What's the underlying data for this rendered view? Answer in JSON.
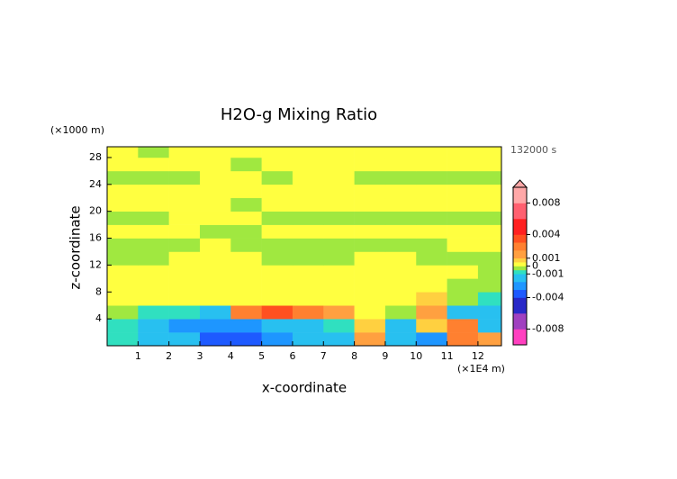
{
  "chart_data": {
    "type": "contour",
    "title": "H2O-g Mixing Ratio",
    "xlabel": "x-coordinate",
    "ylabel": "z-coordinate",
    "x_unit": "(×1E4 m)",
    "y_unit": "(×1000 m)",
    "time_label": "132000 s",
    "xlim": [
      0,
      12.76
    ],
    "ylim": [
      0,
      29.6
    ],
    "xticks": [
      1,
      2,
      3,
      4,
      5,
      6,
      7,
      8,
      9,
      10,
      11,
      12
    ],
    "yticks": [
      4,
      8,
      12,
      16,
      20,
      24,
      28
    ],
    "x": [
      0.5,
      1.5,
      2.5,
      3.5,
      4.5,
      5.5,
      6.5,
      7.5,
      8.5,
      9.5,
      10.5,
      11.5,
      12.5
    ],
    "z": [
      1,
      3,
      5,
      7,
      9,
      11,
      13,
      15,
      17,
      19,
      21,
      23,
      25,
      27,
      29
    ],
    "values": [
      [
        -0.0008,
        -0.0015,
        -0.002,
        -0.0035,
        -0.0035,
        -0.0025,
        -0.0015,
        -0.0015,
        0.0012,
        -0.0015,
        -0.003,
        0.0025,
        0.0015
      ],
      [
        -0.0008,
        -0.0015,
        -0.0025,
        -0.003,
        -0.0025,
        -0.0015,
        -0.0012,
        -0.0008,
        0.0006,
        -0.0012,
        0.0008,
        0.0025,
        -0.0015
      ],
      [
        -0.0003,
        -0.0006,
        -0.0008,
        -0.0012,
        0.0025,
        0.003,
        0.0025,
        0.0012,
        0.0002,
        -0.0003,
        0.0015,
        -0.0015,
        -0.0012
      ],
      [
        0.0002,
        0.0002,
        0.0002,
        0.0002,
        0.0003,
        0.0002,
        0.0002,
        0.0002,
        0.0002,
        0.0002,
        0.0006,
        -0.0002,
        -0.0006
      ],
      [
        0.0002,
        0.0002,
        0.0002,
        0.0002,
        0.0002,
        0.0002,
        0.0002,
        0.0002,
        0.0002,
        0.0002,
        0.0002,
        -0.0002,
        -0.0002
      ],
      [
        0.0002,
        0.0002,
        0.0002,
        0.0002,
        0.0002,
        0.0002,
        0.0002,
        0.0002,
        0.0002,
        0.0002,
        0.0002,
        0.0002,
        -0.0002
      ],
      [
        -0.0002,
        -0.0002,
        0.0002,
        0.0002,
        0.0002,
        -0.0002,
        -0.0002,
        -0.0002,
        0.0002,
        0.0002,
        -0.0002,
        -0.0002,
        -0.0002
      ],
      [
        -0.0002,
        -0.0002,
        -0.0002,
        0.0002,
        -0.0002,
        -0.0002,
        -0.0002,
        -0.0002,
        -0.0002,
        -0.0002,
        -0.0002,
        0.0002,
        0.0002
      ],
      [
        0.0002,
        0.0002,
        0.0002,
        -0.0002,
        -0.0002,
        0.0002,
        0.0002,
        0.0002,
        0.0002,
        0.0002,
        0.0002,
        0.0002,
        0.0002
      ],
      [
        -0.0002,
        -0.0002,
        0.0002,
        0.0002,
        0.0002,
        -0.0002,
        -0.0002,
        -0.0002,
        -0.0002,
        -0.0002,
        -0.0002,
        -0.0002,
        -0.0002
      ],
      [
        0.0002,
        0.0002,
        0.0002,
        0.0002,
        -0.0002,
        0.0002,
        0.0002,
        0.0002,
        0.0002,
        0.0002,
        0.0002,
        0.0002,
        0.0002
      ],
      [
        0.0002,
        0.0002,
        0.0002,
        0.0002,
        0.0002,
        0.0002,
        0.0002,
        0.0002,
        0.0002,
        0.0002,
        0.0002,
        0.0002,
        0.0002
      ],
      [
        -0.0002,
        -0.0002,
        -0.0002,
        0.0002,
        0.0002,
        -0.0002,
        0.0002,
        0.0002,
        -0.0002,
        -0.0002,
        -0.0002,
        -0.0002,
        -0.0002
      ],
      [
        0.0002,
        0.0002,
        0.0002,
        0.0002,
        -0.0002,
        0.0002,
        0.0002,
        0.0002,
        0.0002,
        0.0002,
        0.0002,
        0.0002,
        0.0002
      ],
      [
        0.0002,
        -0.0002,
        0.0002,
        0.0002,
        0.0002,
        0.0002,
        0.0002,
        0.0002,
        0.0002,
        0.0002,
        0.0002,
        0.0002,
        0.0002
      ]
    ],
    "levels": [
      -0.01,
      -0.008,
      -0.006,
      -0.004,
      -0.003,
      -0.002,
      -0.001,
      -0.0005,
      0,
      0.0005,
      0.001,
      0.002,
      0.003,
      0.004,
      0.006,
      0.008,
      0.01
    ],
    "colors": [
      "#ff40c0",
      "#a040c0",
      "#2828c8",
      "#1e5aff",
      "#1e96ff",
      "#28c0f0",
      "#30e0c0",
      "#a0e840",
      "#ffff40",
      "#ffd040",
      "#ffa040",
      "#ff8030",
      "#ff5020",
      "#ff2020",
      "#ff6070",
      "#ffa8a8"
    ],
    "colorbar_lim": [
      -0.01,
      0.01
    ],
    "colorbar_ticks": [
      0.008,
      0.004,
      0.001,
      0,
      -0.001,
      -0.004,
      -0.008
    ]
  }
}
